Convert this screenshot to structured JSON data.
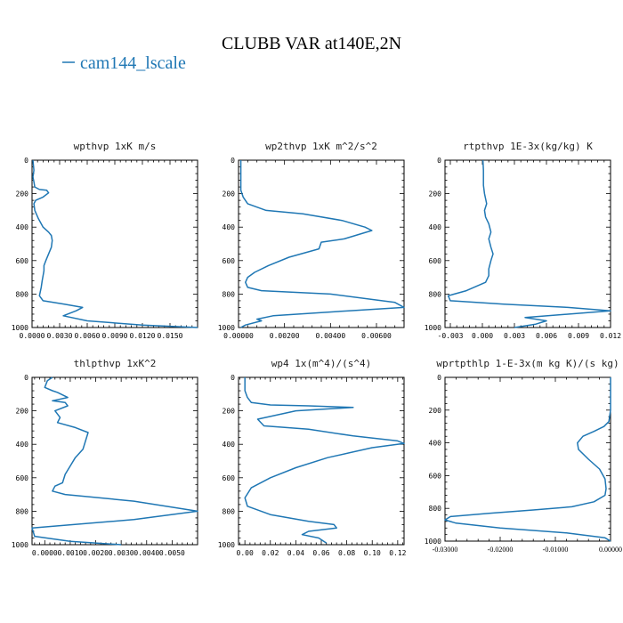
{
  "figure": {
    "title": "CLUBB VAR at140E,2N",
    "legend": "cam144_lscale",
    "line_color": "#1f77b4"
  },
  "chart_data": [
    {
      "type": "line",
      "title": "wpthvp   1xK m/s",
      "xlim": [
        0,
        0.018
      ],
      "ylim": [
        1000,
        0
      ],
      "xticks": [
        "0.0000",
        "0.0030",
        "0.0060",
        "0.0090",
        "0.0120",
        "0.0150"
      ],
      "xtick_values": [
        0,
        0.003,
        0.006,
        0.009,
        0.012,
        0.015
      ],
      "yticks": [
        0,
        200,
        400,
        600,
        800,
        1000
      ],
      "series": [
        {
          "x": [
            0.0001,
            0.0002,
            0.0001,
            0.0002,
            0.0003,
            0.0008,
            0.0016,
            0.0018,
            0.0012,
            0.0004,
            0.0002,
            0.0003,
            0.0007,
            0.0012,
            0.0018,
            0.0021,
            0.0022,
            0.0021,
            0.0018,
            0.0015,
            0.0013,
            0.0013,
            0.0012,
            0.0011,
            0.001,
            0.0008,
            0.0012,
            0.0035,
            0.0055,
            0.0048,
            0.0034,
            0.006,
            0.012,
            0.018
          ],
          "y": [
            0,
            60,
            100,
            130,
            160,
            175,
            180,
            195,
            220,
            240,
            260,
            300,
            350,
            400,
            430,
            450,
            480,
            520,
            560,
            600,
            630,
            660,
            690,
            720,
            760,
            810,
            840,
            860,
            880,
            900,
            930,
            960,
            985,
            1000
          ]
        }
      ]
    },
    {
      "type": "line",
      "title": "wp2thvp   1xK m^2/s^2",
      "xlim": [
        0,
        0.0072
      ],
      "ylim": [
        1000,
        0
      ],
      "xticks": [
        "0.00000",
        "0.00200",
        "0.00400",
        "0.00600"
      ],
      "xtick_values": [
        0,
        0.002,
        0.004,
        0.006
      ],
      "yticks": [
        0,
        200,
        400,
        600,
        800,
        1000
      ],
      "series": [
        {
          "x": [
            0.0001,
            0.0001,
            0.0001,
            0.0001,
            0.0002,
            0.0004,
            0.0012,
            0.0028,
            0.0045,
            0.0055,
            0.0058,
            0.0046,
            0.0036,
            0.0035,
            0.0022,
            0.0013,
            0.0007,
            0.0004,
            0.0003,
            0.0004,
            0.001,
            0.004,
            0.0068,
            0.0072,
            0.0048,
            0.0015,
            0.0008,
            0.001,
            0.0003,
            0.0001
          ],
          "y": [
            0,
            60,
            120,
            180,
            220,
            260,
            300,
            320,
            360,
            400,
            420,
            470,
            490,
            530,
            580,
            630,
            670,
            700,
            730,
            760,
            780,
            800,
            850,
            880,
            900,
            930,
            950,
            960,
            985,
            1000
          ]
        }
      ]
    },
    {
      "type": "line",
      "title": "rtpthvp   1E-3x(kg/kg) K",
      "xlim": [
        -0.0035,
        0.012
      ],
      "ylim": [
        1000,
        0
      ],
      "xticks": [
        "-0.003",
        "0.000",
        "0.003",
        "0.006",
        "0.009",
        "0.012"
      ],
      "xtick_values": [
        -0.003,
        0,
        0.003,
        0.006,
        0.009,
        0.012
      ],
      "yticks": [
        0,
        200,
        400,
        600,
        800,
        1000
      ],
      "series": [
        {
          "x": [
            5e-05,
            0.0001,
            0.0001,
            0.0001,
            0.0002,
            0.0004,
            0.0002,
            0.0003,
            0.0006,
            0.0008,
            0.0006,
            0.0008,
            0.001,
            0.0008,
            0.0006,
            0.0006,
            0.0003,
            -0.0015,
            -0.0032,
            -0.003,
            0.002,
            0.008,
            0.012,
            0.008,
            0.004,
            0.006,
            0.005,
            0.003
          ],
          "y": [
            0,
            60,
            100,
            150,
            200,
            260,
            300,
            340,
            380,
            430,
            470,
            520,
            560,
            600,
            650,
            690,
            730,
            780,
            810,
            840,
            860,
            880,
            900,
            920,
            940,
            960,
            980,
            1000
          ]
        }
      ]
    },
    {
      "type": "line",
      "title": "thlpthvp   1xK^2",
      "xlim": [
        -0.0005,
        0.006
      ],
      "ylim": [
        1000,
        0
      ],
      "xticks": [
        "0.0000",
        "0.0010",
        "0.0020",
        "0.0030",
        "0.0040",
        "0.0050"
      ],
      "xtick_values": [
        0,
        0.001,
        0.002,
        0.003,
        0.004,
        0.005
      ],
      "yticks": [
        0,
        200,
        400,
        600,
        800,
        1000
      ],
      "series": [
        {
          "x": [
            0.0003,
            0.0001,
            0.0,
            0.0003,
            0.0005,
            0.0009,
            0.0003,
            0.0008,
            0.0009,
            0.0004,
            0.0006,
            0.0005,
            0.0012,
            0.0017,
            0.0016,
            0.0015,
            0.0012,
            0.001,
            0.0008,
            0.0007,
            0.0004,
            0.0003,
            0.0008,
            0.0035,
            0.006,
            0.0035,
            -0.0005,
            -0.0004,
            0.001,
            0.003
          ],
          "y": [
            0,
            20,
            60,
            80,
            90,
            120,
            140,
            150,
            170,
            200,
            240,
            270,
            300,
            330,
            380,
            430,
            480,
            530,
            580,
            630,
            650,
            680,
            700,
            740,
            800,
            850,
            900,
            950,
            980,
            1000
          ]
        }
      ]
    },
    {
      "type": "line",
      "title": "wp4   1x(m^4)/(s^4)",
      "xlim": [
        -0.005,
        0.125
      ],
      "ylim": [
        1000,
        0
      ],
      "xticks": [
        "0.00",
        "0.02",
        "0.04",
        "0.06",
        "0.08",
        "0.10",
        "0.12"
      ],
      "xtick_values": [
        0,
        0.02,
        0.04,
        0.06,
        0.08,
        0.1,
        0.12
      ],
      "yticks": [
        0,
        200,
        400,
        600,
        800,
        1000
      ],
      "series": [
        {
          "x": [
            0.0,
            0.0,
            0.0,
            0.002,
            0.005,
            0.02,
            0.05,
            0.085,
            0.04,
            0.01,
            0.015,
            0.05,
            0.085,
            0.12,
            0.125,
            0.1,
            0.065,
            0.04,
            0.02,
            0.005,
            0.0,
            0.002,
            0.02,
            0.05,
            0.07,
            0.072,
            0.05,
            0.045,
            0.058,
            0.064
          ],
          "y": [
            0,
            40,
            80,
            120,
            150,
            165,
            170,
            180,
            200,
            250,
            290,
            310,
            350,
            380,
            395,
            420,
            480,
            540,
            600,
            660,
            720,
            770,
            820,
            860,
            880,
            900,
            920,
            940,
            960,
            990
          ]
        }
      ]
    },
    {
      "type": "line",
      "title": "wprtpthlp   1-E-3x(m kg K)/(s kg)",
      "xlim": [
        -0.03,
        0.0
      ],
      "ylim": [
        1000,
        0
      ],
      "xticks": [
        "-0.03000",
        "-0.02000",
        "-0.01000",
        "0.00000"
      ],
      "xtick_values": [
        -0.03,
        -0.02,
        -0.01,
        0.0
      ],
      "yticks": [
        0,
        200,
        400,
        600,
        800,
        1000
      ],
      "series": [
        {
          "x": [
            0.0,
            0.0,
            0.0,
            0.0,
            -0.0003,
            -0.0012,
            -0.003,
            -0.005,
            -0.006,
            -0.0058,
            -0.004,
            -0.002,
            -0.001,
            -0.0008,
            -0.001,
            -0.003,
            -0.007,
            -0.014,
            -0.022,
            -0.029,
            -0.03,
            -0.028,
            -0.02,
            -0.008,
            -0.001,
            0.0
          ],
          "y": [
            0,
            60,
            120,
            200,
            270,
            300,
            330,
            360,
            400,
            440,
            500,
            560,
            620,
            680,
            720,
            760,
            790,
            810,
            830,
            850,
            870,
            890,
            920,
            950,
            980,
            1000
          ]
        }
      ]
    }
  ]
}
